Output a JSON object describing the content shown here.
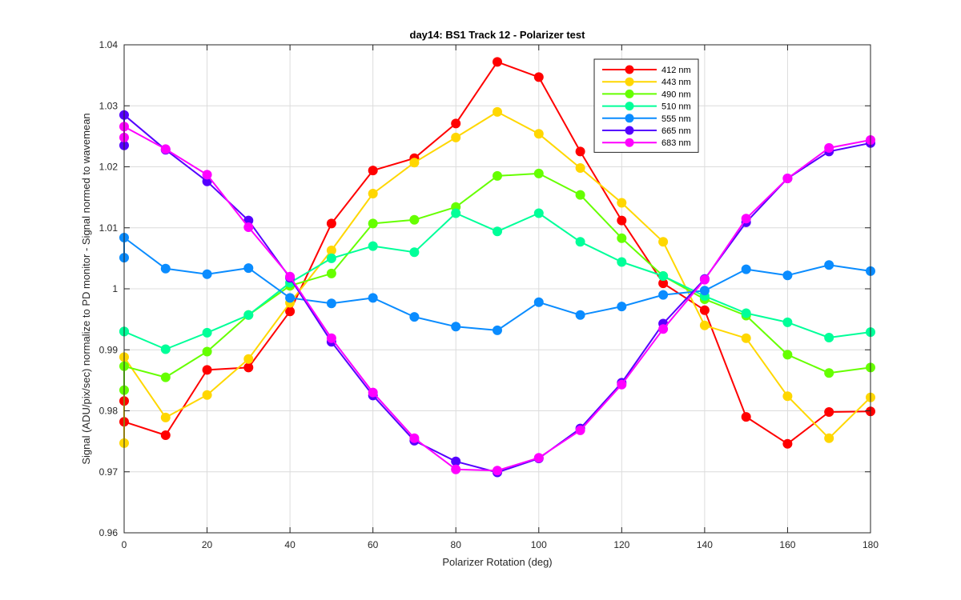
{
  "chart_data": {
    "type": "line",
    "title": "day14: BS1  Track 12 - Polarizer test",
    "xlabel": "Polarizer Rotation (deg)",
    "ylabel": "Signal (ADU/pix/sec) normalize to PD monitor - Signal normed to wavemean",
    "xlim": [
      0,
      180
    ],
    "ylim": [
      0.96,
      1.04
    ],
    "xticks": [
      "0",
      "20",
      "40",
      "60",
      "80",
      "100",
      "120",
      "140",
      "160",
      "180"
    ],
    "yticks": [
      "0.96",
      "0.97",
      "0.98",
      "0.99",
      "1",
      "1.01",
      "1.02",
      "1.03",
      "1.04"
    ],
    "grid": true,
    "box": true,
    "legend_position": "top-right",
    "x": [
      0,
      0,
      10,
      20,
      30,
      40,
      50,
      60,
      70,
      80,
      90,
      100,
      110,
      120,
      130,
      140,
      150,
      160,
      170,
      180
    ],
    "series": [
      {
        "name": "412 nm",
        "color": "#ff0000",
        "values": [
          0.9816,
          0.9782,
          0.976,
          0.9867,
          0.9871,
          0.9963,
          1.0107,
          1.0194,
          1.0214,
          1.0271,
          1.0372,
          1.0347,
          1.0225,
          1.0112,
          1.0009,
          0.9965,
          0.979,
          0.9746,
          0.9798,
          0.9799
        ]
      },
      {
        "name": "443 nm",
        "color": "#ffd700",
        "values": [
          0.9747,
          0.9888,
          0.9789,
          0.9826,
          0.9885,
          0.9977,
          1.0063,
          1.0156,
          1.0207,
          1.0248,
          1.029,
          1.0254,
          1.0198,
          1.0141,
          1.0077,
          0.994,
          0.9919,
          0.9824,
          0.9755,
          0.9822
        ]
      },
      {
        "name": "490 nm",
        "color": "#66ff00",
        "values": [
          0.9834,
          0.9873,
          0.9855,
          0.9897,
          0.9957,
          1.0005,
          1.0025,
          1.0107,
          1.0113,
          1.0134,
          1.0185,
          1.0189,
          1.0154,
          1.0083,
          1.0021,
          0.9983,
          0.9956,
          0.9892,
          0.9862,
          0.9871
        ]
      },
      {
        "name": "510 nm",
        "color": "#00ff99",
        "values": [
          0.993,
          0.993,
          0.9901,
          0.9928,
          0.9957,
          1.001,
          1.005,
          1.007,
          1.006,
          1.0124,
          1.0094,
          1.0124,
          1.0077,
          1.0044,
          1.0021,
          0.9988,
          0.996,
          0.9945,
          0.992,
          0.9929
        ]
      },
      {
        "name": "555 nm",
        "color": "#0a8cff",
        "values": [
          1.0051,
          1.0084,
          1.0033,
          1.0024,
          1.0034,
          0.9985,
          0.9976,
          0.9985,
          0.9954,
          0.9938,
          0.9932,
          0.9978,
          0.9957,
          0.9971,
          0.999,
          0.9997,
          1.0032,
          1.0022,
          1.0039,
          1.0029
        ]
      },
      {
        "name": "665 nm",
        "color": "#5500ff",
        "values": [
          1.0235,
          1.0285,
          1.0228,
          1.0176,
          1.0112,
          1.0018,
          0.9913,
          0.9825,
          0.9751,
          0.9717,
          0.9699,
          0.9722,
          0.9771,
          0.9846,
          0.9943,
          1.0016,
          1.0109,
          1.0181,
          1.0225,
          1.0239
        ]
      },
      {
        "name": "683 nm",
        "color": "#ff00ff",
        "values": [
          1.0248,
          1.0266,
          1.0229,
          1.0187,
          1.0101,
          1.002,
          0.9919,
          0.983,
          0.9755,
          0.9704,
          0.9702,
          0.9723,
          0.9768,
          0.9843,
          0.9934,
          1.0015,
          1.0115,
          1.0181,
          1.0231,
          1.0244
        ]
      }
    ]
  }
}
